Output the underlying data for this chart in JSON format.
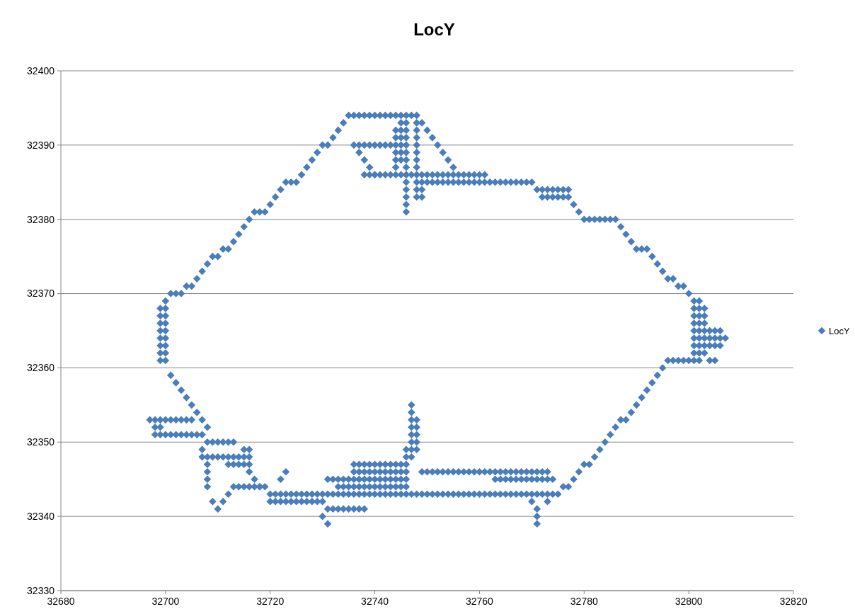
{
  "chart_data": {
    "type": "scatter",
    "title": "LocY",
    "xlim": [
      32680,
      32820
    ],
    "xticks": [
      32680,
      32700,
      32720,
      32740,
      32760,
      32780,
      32800,
      32820
    ],
    "ylim": [
      32330,
      32400
    ],
    "yticks": [
      32330,
      32340,
      32350,
      32360,
      32370,
      32380,
      32390,
      32400
    ],
    "grid": "y",
    "legend": "right",
    "marker": "diamond",
    "series": [
      {
        "name": "LocY",
        "color": "#4a7ebb",
        "x": [
          32699,
          32699,
          32699,
          32699,
          32699,
          32699,
          32699,
          32699,
          32700,
          32700,
          32700,
          32700,
          32700,
          32700,
          32700,
          32700,
          32700,
          32701,
          32702,
          32703,
          32704,
          32705,
          32706,
          32707,
          32708,
          32709,
          32710,
          32711,
          32712,
          32713,
          32714,
          32715,
          32716,
          32717,
          32718,
          32719,
          32720,
          32721,
          32722,
          32723,
          32724,
          32725,
          32726,
          32727,
          32728,
          32729,
          32730,
          32731,
          32732,
          32733,
          32734,
          32735,
          32736,
          32737,
          32738,
          32739,
          32740,
          32741,
          32742,
          32743,
          32744,
          32745,
          32746,
          32747,
          32748,
          32749,
          32750,
          32751,
          32752,
          32753,
          32754,
          32755,
          32738,
          32739,
          32740,
          32741,
          32742,
          32743,
          32744,
          32745,
          32746,
          32747,
          32748,
          32749,
          32750,
          32751,
          32752,
          32753,
          32754,
          32755,
          32756,
          32757,
          32758,
          32759,
          32760,
          32761,
          32749,
          32750,
          32751,
          32752,
          32753,
          32754,
          32755,
          32756,
          32757,
          32758,
          32759,
          32760,
          32761,
          32762,
          32763,
          32764,
          32765,
          32766,
          32767,
          32768,
          32769,
          32770,
          32771,
          32772,
          32773,
          32774,
          32775,
          32776,
          32777,
          32772,
          32773,
          32774,
          32775,
          32776,
          32777,
          32778,
          32779,
          32780,
          32781,
          32782,
          32783,
          32784,
          32785,
          32786,
          32787,
          32788,
          32789,
          32790,
          32791,
          32792,
          32793,
          32794,
          32795,
          32796,
          32797,
          32798,
          32799,
          32800,
          32801,
          32801,
          32801,
          32801,
          32801,
          32801,
          32801,
          32801,
          32801,
          32802,
          32802,
          32802,
          32802,
          32802,
          32802,
          32802,
          32802,
          32802,
          32803,
          32803,
          32803,
          32803,
          32803,
          32803,
          32803,
          32804,
          32805,
          32806,
          32807,
          32804,
          32805,
          32806,
          32804,
          32805,
          32806,
          32796,
          32797,
          32798,
          32799,
          32800,
          32804,
          32805,
          32795,
          32794,
          32793,
          32792,
          32791,
          32790,
          32789,
          32788,
          32787,
          32786,
          32785,
          32784,
          32783,
          32782,
          32781,
          32780,
          32779,
          32778,
          32777,
          32776,
          32720,
          32721,
          32722,
          32723,
          32724,
          32725,
          32726,
          32727,
          32728,
          32729,
          32730,
          32731,
          32732,
          32733,
          32734,
          32735,
          32736,
          32737,
          32738,
          32739,
          32740,
          32741,
          32742,
          32743,
          32744,
          32745,
          32746,
          32747,
          32748,
          32749,
          32750,
          32751,
          32752,
          32753,
          32754,
          32755,
          32756,
          32757,
          32758,
          32759,
          32760,
          32761,
          32762,
          32763,
          32764,
          32765,
          32766,
          32767,
          32768,
          32769,
          32770,
          32771,
          32772,
          32773,
          32774,
          32775,
          32720,
          32721,
          32722,
          32723,
          32724,
          32725,
          32726,
          32727,
          32728,
          32729,
          32730,
          32713,
          32714,
          32715,
          32716,
          32717,
          32718,
          32719,
          32749,
          32750,
          32751,
          32752,
          32753,
          32754,
          32755,
          32756,
          32757,
          32758,
          32759,
          32760,
          32761,
          32762,
          32763,
          32764,
          32765,
          32766,
          32767,
          32768,
          32769,
          32770,
          32771,
          32772,
          32773,
          32763,
          32764,
          32765,
          32766,
          32767,
          32768,
          32769,
          32770,
          32771,
          32772,
          32773,
          32774,
          32736,
          32737,
          32738,
          32739,
          32740,
          32741,
          32742,
          32743,
          32744,
          32745,
          32746,
          32736,
          32737,
          32738,
          32739,
          32740,
          32741,
          32742,
          32743,
          32744,
          32745,
          32746,
          32731,
          32732,
          32733,
          32734,
          32735,
          32736,
          32737,
          32738,
          32739,
          32740,
          32741,
          32742,
          32743,
          32744,
          32745,
          32746,
          32733,
          32734,
          32735,
          32736,
          32737,
          32738,
          32739,
          32740,
          32741,
          32742,
          32743,
          32744,
          32745,
          32746,
          32731,
          32732,
          32733,
          32734,
          32735,
          32736,
          32737,
          32738,
          32731,
          32730,
          32770,
          32771,
          32771,
          32771,
          32773,
          32747,
          32747,
          32747,
          32747,
          32747,
          32747,
          32747,
          32747,
          32748,
          32748,
          32748,
          32748,
          32748,
          32746,
          32746,
          32701,
          32702,
          32703,
          32704,
          32705,
          32706,
          32707,
          32708,
          32697,
          32698,
          32699,
          32700,
          32701,
          32702,
          32703,
          32704,
          32705,
          32698,
          32699,
          32700,
          32701,
          32702,
          32703,
          32704,
          32705,
          32706,
          32707,
          32698,
          32699,
          32708,
          32709,
          32710,
          32711,
          32712,
          32713,
          32707,
          32708,
          32709,
          32710,
          32711,
          32712,
          32713,
          32714,
          32715,
          32716,
          32712,
          32713,
          32714,
          32715,
          32716,
          32716,
          32715,
          32707,
          32708,
          32708,
          32708,
          32708,
          32709,
          32710,
          32711,
          32712,
          32716,
          32717,
          32718,
          32722,
          32723,
          32746,
          32746,
          32746,
          32746,
          32746,
          32746,
          32746,
          32746,
          32746,
          32746,
          32746,
          32746,
          32746,
          32748,
          32748,
          32748,
          32748,
          32748,
          32748,
          32748,
          32748,
          32748,
          32748,
          32748,
          32744,
          32744,
          32744,
          32744,
          32744,
          32744,
          32745,
          32745,
          32745,
          32745,
          32745,
          32745,
          32736,
          32737,
          32738,
          32739,
          32740,
          32741,
          32742,
          32743,
          32737,
          32738,
          32739,
          32740,
          32749,
          32749
        ],
        "values": [
          32361,
          32362,
          32363,
          32364,
          32365,
          32366,
          32367,
          32368,
          32361,
          32362,
          32363,
          32364,
          32365,
          32366,
          32367,
          32368,
          32369,
          32370,
          32370,
          32370,
          32371,
          32371,
          32372,
          32373,
          32374,
          32375,
          32375,
          32376,
          32376,
          32377,
          32378,
          32379,
          32380,
          32381,
          32381,
          32381,
          32382,
          32383,
          32384,
          32385,
          32385,
          32385,
          32386,
          32387,
          32388,
          32389,
          32390,
          32390,
          32391,
          32392,
          32393,
          32394,
          32394,
          32394,
          32394,
          32394,
          32394,
          32394,
          32394,
          32394,
          32394,
          32394,
          32394,
          32394,
          32394,
          32393,
          32392,
          32391,
          32390,
          32389,
          32388,
          32387,
          32386,
          32386,
          32386,
          32386,
          32386,
          32386,
          32386,
          32386,
          32386,
          32386,
          32386,
          32386,
          32386,
          32386,
          32386,
          32386,
          32386,
          32386,
          32386,
          32386,
          32386,
          32386,
          32386,
          32386,
          32385,
          32385,
          32385,
          32385,
          32385,
          32385,
          32385,
          32385,
          32385,
          32385,
          32385,
          32385,
          32385,
          32385,
          32385,
          32385,
          32385,
          32385,
          32385,
          32385,
          32385,
          32385,
          32384,
          32384,
          32384,
          32384,
          32384,
          32384,
          32384,
          32383,
          32383,
          32383,
          32383,
          32383,
          32383,
          32382,
          32381,
          32380,
          32380,
          32380,
          32380,
          32380,
          32380,
          32380,
          32379,
          32378,
          32377,
          32376,
          32376,
          32376,
          32375,
          32374,
          32373,
          32372,
          32372,
          32371,
          32371,
          32370,
          32361,
          32362,
          32363,
          32364,
          32365,
          32366,
          32367,
          32368,
          32369,
          32361,
          32362,
          32363,
          32364,
          32365,
          32366,
          32367,
          32368,
          32369,
          32362,
          32363,
          32364,
          32365,
          32366,
          32367,
          32368,
          32364,
          32364,
          32364,
          32364,
          32365,
          32365,
          32365,
          32363,
          32363,
          32363,
          32361,
          32361,
          32361,
          32361,
          32361,
          32361,
          32361,
          32360,
          32359,
          32358,
          32357,
          32356,
          32355,
          32354,
          32353,
          32353,
          32352,
          32351,
          32350,
          32349,
          32348,
          32347,
          32347,
          32346,
          32345,
          32344,
          32344,
          32343,
          32343,
          32343,
          32343,
          32343,
          32343,
          32343,
          32343,
          32343,
          32343,
          32343,
          32343,
          32343,
          32343,
          32343,
          32343,
          32343,
          32343,
          32343,
          32343,
          32343,
          32343,
          32343,
          32343,
          32343,
          32343,
          32343,
          32343,
          32343,
          32343,
          32343,
          32343,
          32343,
          32343,
          32343,
          32343,
          32343,
          32343,
          32343,
          32343,
          32343,
          32343,
          32343,
          32343,
          32343,
          32343,
          32343,
          32343,
          32343,
          32343,
          32343,
          32343,
          32343,
          32343,
          32343,
          32343,
          32342,
          32342,
          32342,
          32342,
          32342,
          32342,
          32342,
          32342,
          32342,
          32342,
          32342,
          32344,
          32344,
          32344,
          32344,
          32344,
          32344,
          32344,
          32346,
          32346,
          32346,
          32346,
          32346,
          32346,
          32346,
          32346,
          32346,
          32346,
          32346,
          32346,
          32346,
          32346,
          32346,
          32346,
          32346,
          32346,
          32346,
          32346,
          32346,
          32346,
          32346,
          32346,
          32346,
          32345,
          32345,
          32345,
          32345,
          32345,
          32345,
          32345,
          32345,
          32345,
          32345,
          32345,
          32345,
          32347,
          32347,
          32347,
          32347,
          32347,
          32347,
          32347,
          32347,
          32347,
          32347,
          32347,
          32346,
          32346,
          32346,
          32346,
          32346,
          32346,
          32346,
          32346,
          32346,
          32346,
          32346,
          32345,
          32345,
          32345,
          32345,
          32345,
          32345,
          32345,
          32345,
          32345,
          32345,
          32345,
          32345,
          32345,
          32345,
          32345,
          32345,
          32344,
          32344,
          32344,
          32344,
          32344,
          32344,
          32344,
          32344,
          32344,
          32344,
          32344,
          32344,
          32344,
          32344,
          32341,
          32341,
          32341,
          32341,
          32341,
          32341,
          32341,
          32341,
          32339,
          32340,
          32342,
          32341,
          32340,
          32339,
          32342,
          32348,
          32349,
          32350,
          32351,
          32352,
          32353,
          32354,
          32355,
          32349,
          32350,
          32351,
          32352,
          32353,
          32348,
          32349,
          32359,
          32358,
          32357,
          32356,
          32355,
          32354,
          32353,
          32352,
          32353,
          32353,
          32353,
          32353,
          32353,
          32353,
          32353,
          32353,
          32353,
          32351,
          32351,
          32351,
          32351,
          32351,
          32351,
          32351,
          32351,
          32351,
          32351,
          32352,
          32352,
          32350,
          32350,
          32350,
          32350,
          32350,
          32350,
          32348,
          32348,
          32348,
          32348,
          32348,
          32348,
          32348,
          32348,
          32348,
          32348,
          32347,
          32347,
          32347,
          32347,
          32347,
          32349,
          32349,
          32349,
          32344,
          32345,
          32346,
          32347,
          32342,
          32341,
          32342,
          32343,
          32346,
          32345,
          32344,
          32345,
          32346,
          32381,
          32382,
          32383,
          32384,
          32385,
          32386,
          32387,
          32388,
          32389,
          32390,
          32391,
          32392,
          32393,
          32383,
          32384,
          32385,
          32386,
          32387,
          32388,
          32389,
          32390,
          32391,
          32392,
          32393,
          32387,
          32388,
          32389,
          32390,
          32391,
          32392,
          32388,
          32389,
          32390,
          32391,
          32392,
          32393,
          32390,
          32390,
          32390,
          32390,
          32390,
          32390,
          32390,
          32390,
          32389,
          32388,
          32387,
          32386,
          32384,
          32383
        ]
      }
    ]
  }
}
